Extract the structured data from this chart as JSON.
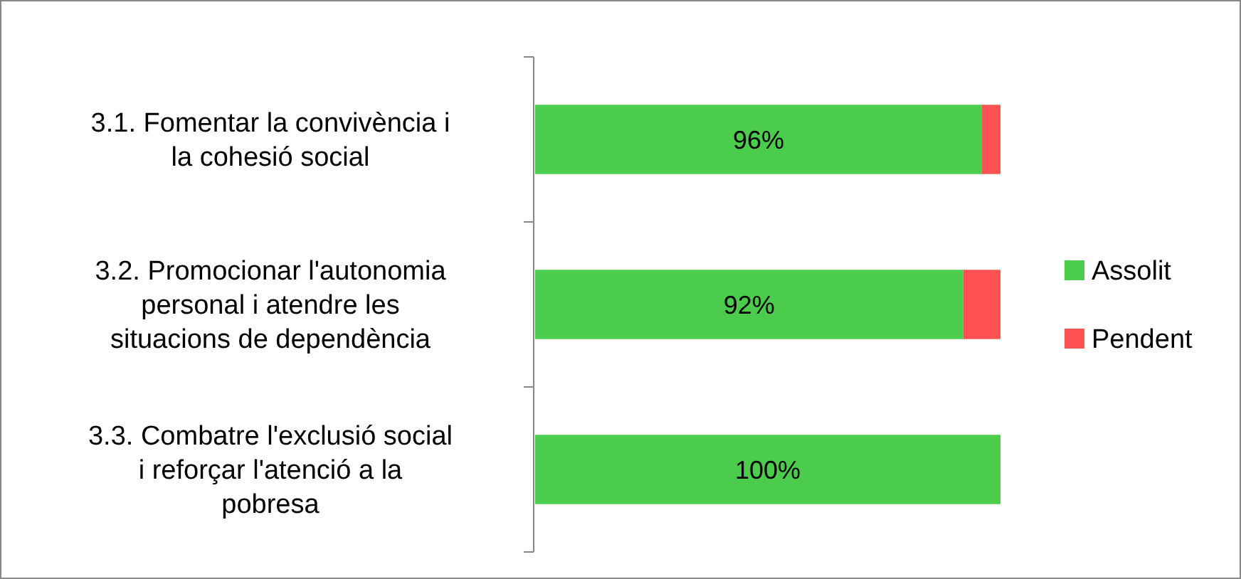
{
  "chart_data": {
    "type": "bar",
    "orientation": "horizontal",
    "stacked": true,
    "xlim": [
      0,
      100
    ],
    "tick_labels": false,
    "categories": [
      "3.1. Fomentar la convivència i la cohesió social",
      "3.2. Promocionar l'autonomia personal i atendre les situacions de dependència",
      "3.3. Combatre l'exclusió social i reforçar l'atenció a la pobresa"
    ],
    "series": [
      {
        "name": "Assolit",
        "color": "#4ccc4c",
        "values": [
          96,
          92,
          100
        ],
        "value_labels": [
          "96%",
          "92%",
          "100%"
        ]
      },
      {
        "name": "Pendent",
        "color": "#ff5353",
        "values": [
          4,
          8,
          0
        ]
      }
    ],
    "legend": "right"
  }
}
